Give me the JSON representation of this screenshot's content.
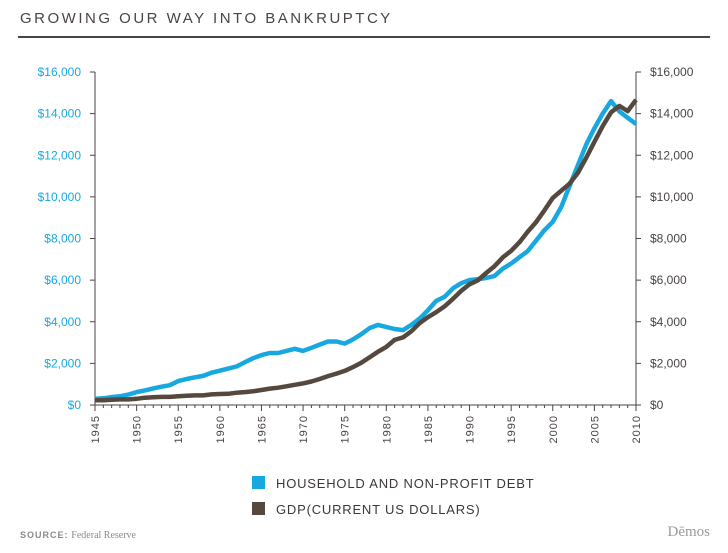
{
  "title": "GROWING OUR WAY INTO BANKRUPTCY",
  "source_label": "SOURCE:",
  "source_text": "Federal Reserve",
  "brand": "Dēmos",
  "colors": {
    "debt": "#17a8e0",
    "gdp": "#55493f",
    "left_axis": "#17a8e0",
    "right_axis": "#4a4442"
  },
  "chart_data": {
    "type": "line",
    "title": "GROWING OUR WAY INTO BANKRUPTCY",
    "xlabel": "",
    "ylabel": "",
    "x_ticks": [
      1945,
      1950,
      1955,
      1960,
      1965,
      1970,
      1975,
      1980,
      1985,
      1990,
      1995,
      2000,
      2005,
      2010
    ],
    "y_ticks": [
      0,
      2000,
      4000,
      6000,
      8000,
      10000,
      12000,
      14000,
      16000
    ],
    "y_tick_labels": [
      "$0",
      "$2,000",
      "$4,000",
      "$6,000",
      "$8,000",
      "$10,000",
      "$12,000",
      "$14,000",
      "$16,000"
    ],
    "xlim": [
      1945,
      2010
    ],
    "ylim": [
      0,
      16000
    ],
    "legend_position": "bottom-center",
    "grid": false,
    "series": [
      {
        "name": "HOUSEHOLD AND NON-PROFIT DEBT",
        "x": [
          1945,
          1946,
          1947,
          1948,
          1949,
          1950,
          1951,
          1952,
          1953,
          1954,
          1955,
          1956,
          1957,
          1958,
          1959,
          1960,
          1961,
          1962,
          1963,
          1964,
          1965,
          1966,
          1967,
          1968,
          1969,
          1970,
          1971,
          1972,
          1973,
          1974,
          1975,
          1976,
          1977,
          1978,
          1979,
          1980,
          1981,
          1982,
          1983,
          1984,
          1985,
          1986,
          1987,
          1988,
          1989,
          1990,
          1991,
          1992,
          1993,
          1994,
          1995,
          1996,
          1997,
          1998,
          1999,
          2000,
          2001,
          2002,
          2003,
          2004,
          2005,
          2006,
          2007,
          2008,
          2009,
          2010
        ],
        "values": [
          300,
          320,
          380,
          420,
          500,
          620,
          700,
          800,
          880,
          950,
          1150,
          1250,
          1330,
          1400,
          1550,
          1650,
          1750,
          1850,
          2050,
          2250,
          2400,
          2500,
          2500,
          2600,
          2700,
          2600,
          2750,
          2900,
          3050,
          3050,
          2950,
          3150,
          3400,
          3700,
          3850,
          3750,
          3650,
          3600,
          3850,
          4150,
          4550,
          5000,
          5200,
          5600,
          5850,
          6000,
          6050,
          6100,
          6200,
          6550,
          6800,
          7100,
          7400,
          7900,
          8400,
          8800,
          9500,
          10500,
          11500,
          12500,
          13300,
          14000,
          14600,
          14100,
          13800,
          13500
        ]
      },
      {
        "name": "GDP(CURRENT US DOLLARS)",
        "x": [
          1945,
          1946,
          1947,
          1948,
          1949,
          1950,
          1951,
          1952,
          1953,
          1954,
          1955,
          1956,
          1957,
          1958,
          1959,
          1960,
          1961,
          1962,
          1963,
          1964,
          1965,
          1966,
          1967,
          1968,
          1969,
          1970,
          1971,
          1972,
          1973,
          1974,
          1975,
          1976,
          1977,
          1978,
          1979,
          1980,
          1981,
          1982,
          1983,
          1984,
          1985,
          1986,
          1987,
          1988,
          1989,
          1990,
          1991,
          1992,
          1993,
          1994,
          1995,
          1996,
          1997,
          1998,
          1999,
          2000,
          2001,
          2002,
          2003,
          2004,
          2005,
          2006,
          2007,
          2008,
          2009,
          2010
        ],
        "values": [
          230,
          230,
          250,
          270,
          270,
          300,
          350,
          370,
          390,
          390,
          420,
          440,
          460,
          460,
          510,
          530,
          540,
          590,
          620,
          660,
          720,
          790,
          830,
          900,
          970,
          1040,
          1130,
          1250,
          1390,
          1510,
          1640,
          1820,
          2030,
          2290,
          2560,
          2790,
          3130,
          3250,
          3540,
          3930,
          4220,
          4460,
          4740,
          5100,
          5480,
          5800,
          5990,
          6340,
          6670,
          7090,
          7410,
          7820,
          8330,
          8790,
          9350,
          9950,
          10290,
          10630,
          11140,
          11870,
          12640,
          13400,
          14060,
          14370,
          14120,
          14660
        ]
      }
    ]
  }
}
